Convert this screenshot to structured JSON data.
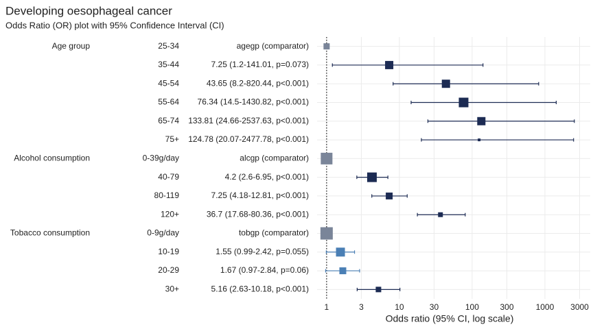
{
  "chart_data": {
    "type": "forest",
    "title": "Developing oesophageal cancer",
    "subtitle": "Odds Ratio (OR) plot with 95% Confidence Interval (CI)",
    "xlabel": "Odds ratio (95% CI, log scale)",
    "groups": [
      "Age group",
      null,
      null,
      null,
      null,
      null,
      "Alcohol consumption",
      null,
      null,
      null,
      "Tobacco consumption",
      null,
      null,
      null
    ],
    "categories": [
      "25-34",
      "35-44",
      "45-54",
      "55-64",
      "65-74",
      "75+",
      "0-39g/day",
      "40-79",
      "80-119",
      "120+",
      "0-9g/day",
      "10-19",
      "20-29",
      "30+"
    ],
    "value_labels": [
      "agegp (comparator)",
      "7.25 (1.2-141.01, p=0.073)",
      "43.65 (8.2-820.44, p<0.001)",
      "76.34 (14.5-1430.82, p<0.001)",
      "133.81 (24.66-2537.63, p<0.001)",
      "124.78 (20.07-2477.78, p<0.001)",
      "alcgp (comparator)",
      "4.2 (2.6-6.95, p<0.001)",
      "7.25 (4.18-12.81, p<0.001)",
      "36.7 (17.68-80.36, p<0.001)",
      "tobgp (comparator)",
      "1.55 (0.99-2.42, p=0.055)",
      "1.67 (0.97-2.84, p=0.06)",
      "5.16 (2.63-10.18, p<0.001)"
    ],
    "values": [
      1,
      7.25,
      43.65,
      76.34,
      133.81,
      124.78,
      1,
      4.2,
      7.25,
      36.7,
      1,
      1.55,
      1.67,
      5.16
    ],
    "lower": [
      null,
      1.2,
      8.2,
      14.5,
      24.66,
      20.07,
      null,
      2.6,
      4.18,
      17.68,
      null,
      0.99,
      0.97,
      2.63
    ],
    "upper": [
      null,
      141.01,
      820.44,
      1430.82,
      2537.63,
      2477.78,
      null,
      6.95,
      12.81,
      80.36,
      null,
      2.42,
      2.84,
      10.18
    ],
    "colors": [
      "#7a8599",
      "#1c2b53",
      "#1c2b53",
      "#1c2b53",
      "#1c2b53",
      "#1c2b53",
      "#7a8599",
      "#1c2b53",
      "#1c2b53",
      "#1c2b53",
      "#7a8599",
      "#4a7fb5",
      "#4a7fb5",
      "#1c2b53"
    ],
    "weights": [
      9,
      12,
      12,
      14,
      12,
      4,
      17,
      14,
      10,
      7,
      18,
      13,
      10,
      8
    ],
    "xlim": [
      0.74,
      4200
    ],
    "xticks": [
      1,
      3,
      10,
      30,
      100,
      300,
      1000,
      3000
    ],
    "log_scale": true,
    "grid": true,
    "reference_line": 1
  }
}
